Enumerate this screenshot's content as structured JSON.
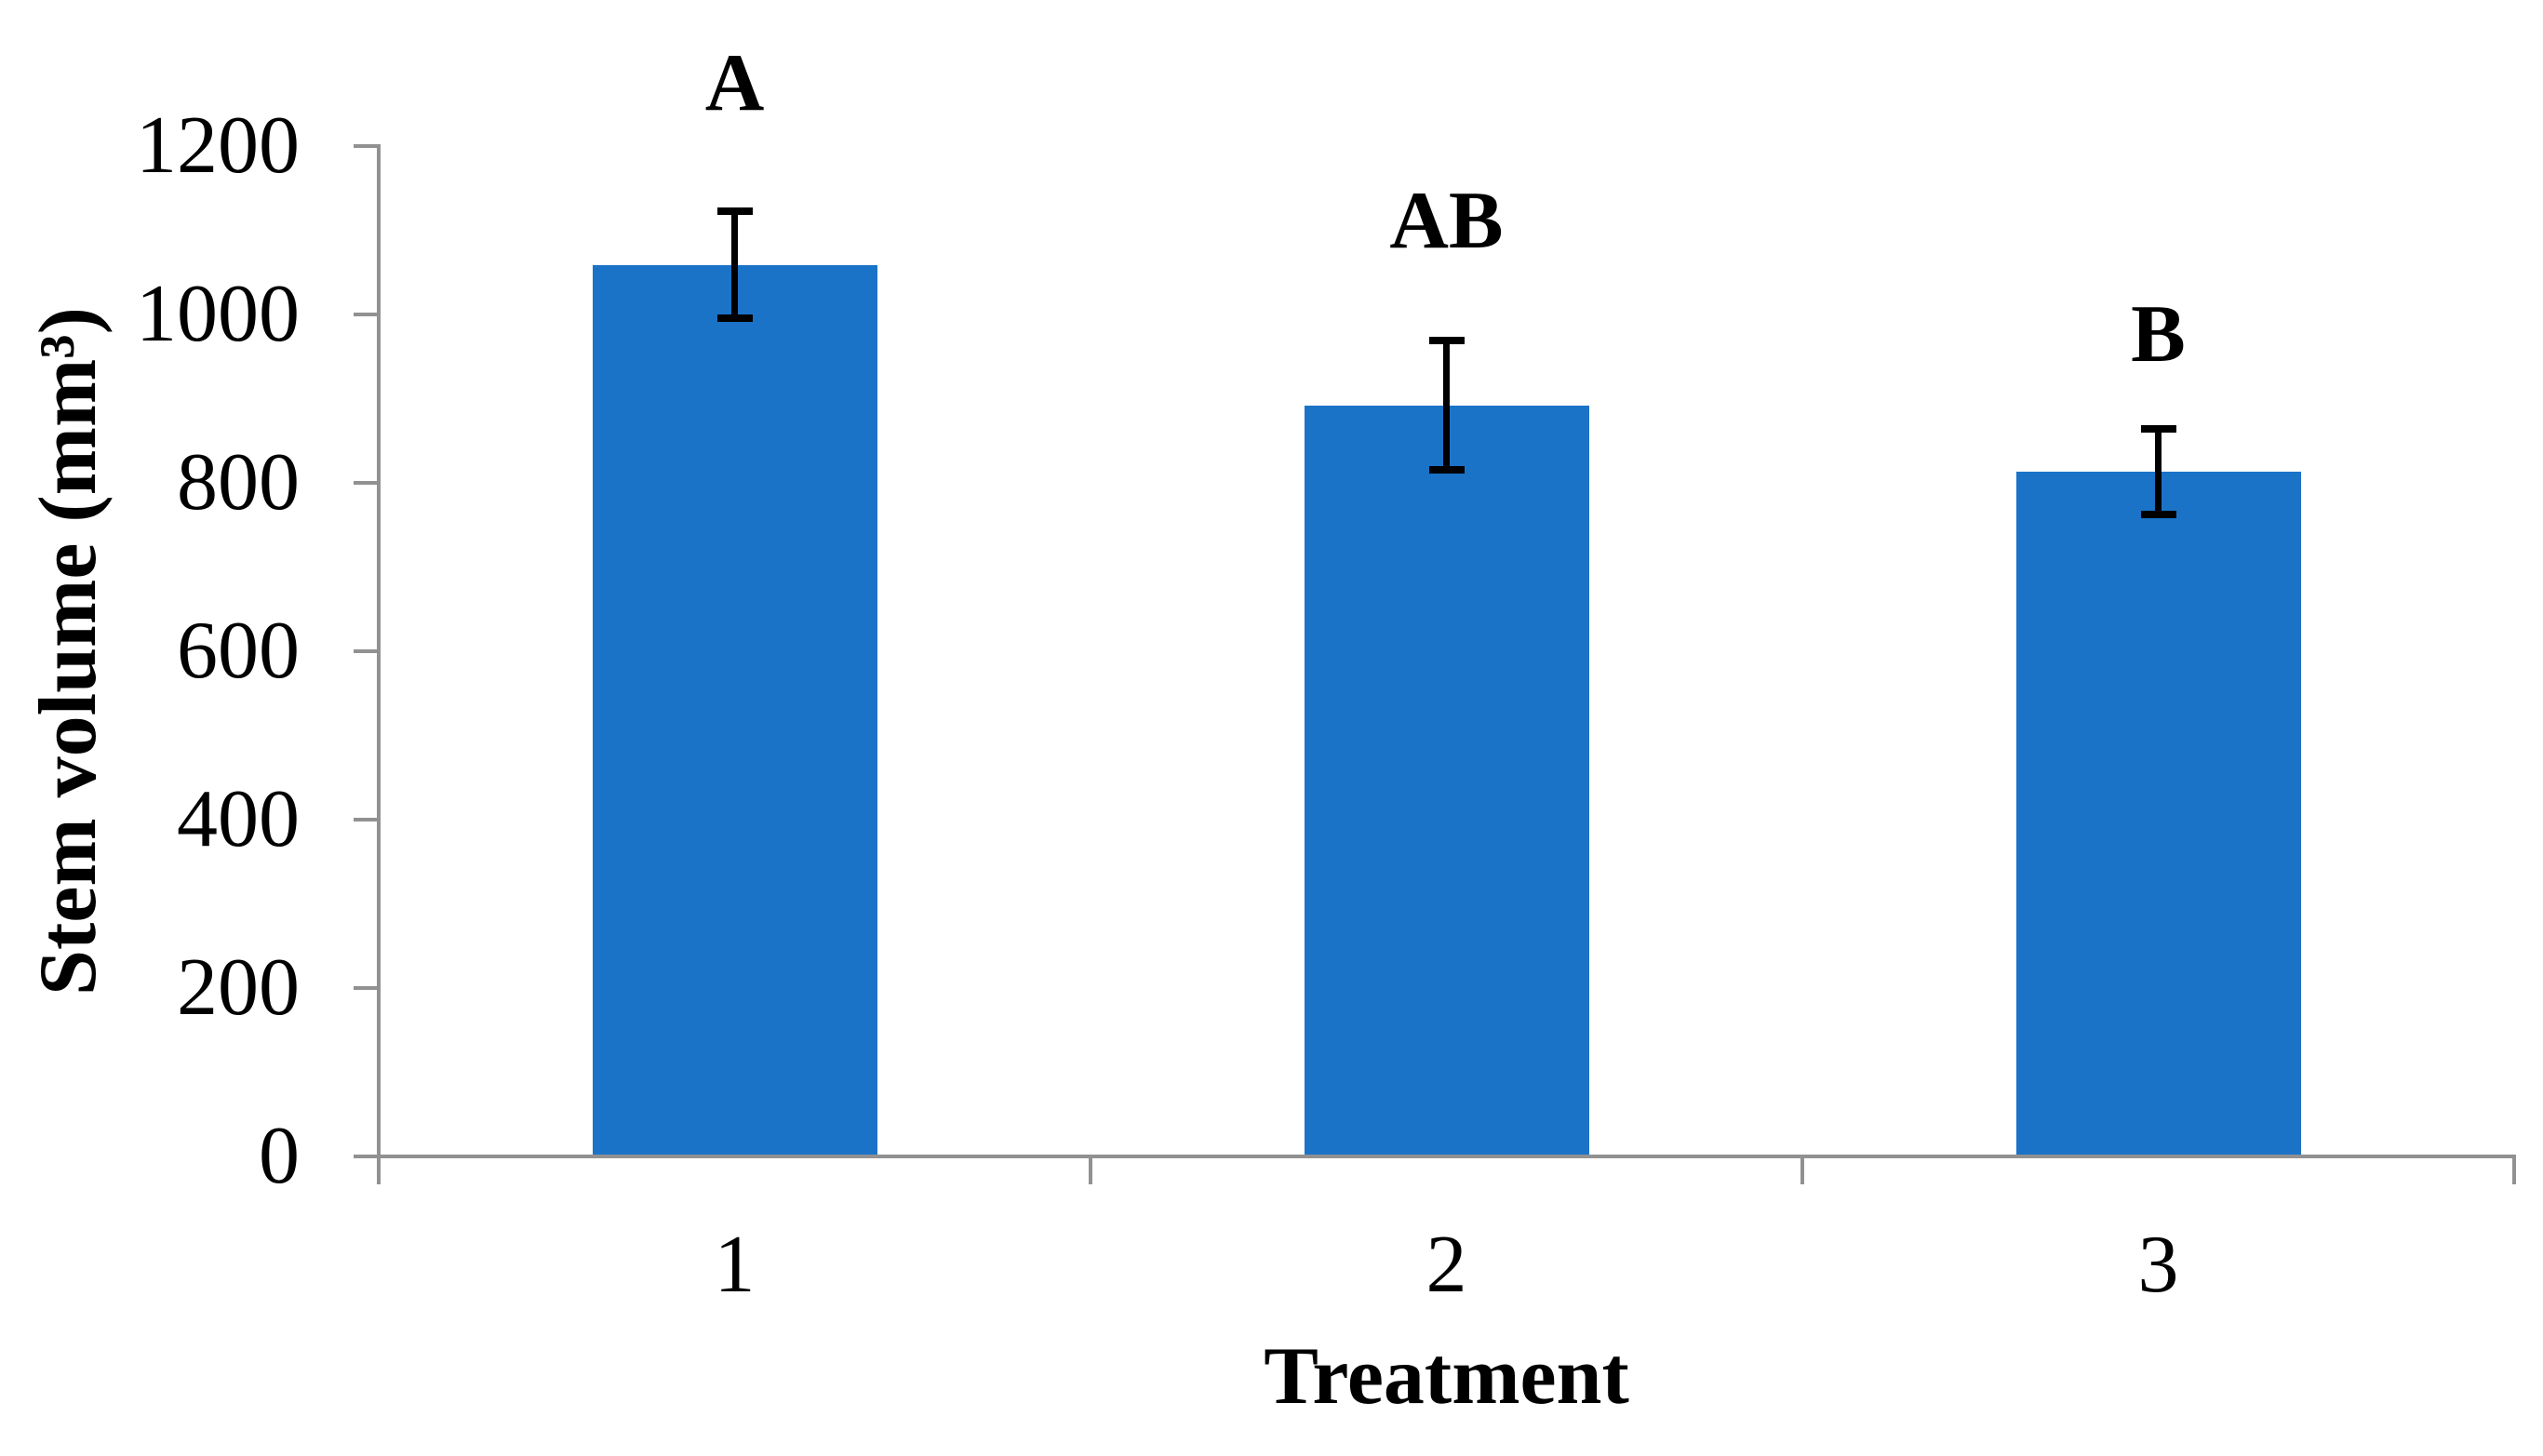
{
  "chart_data": {
    "type": "bar",
    "title": "",
    "xlabel": "Treatment",
    "ylabel": "Stem volume (mm³)",
    "categories": [
      "1",
      "2",
      "3"
    ],
    "values": [
      1059,
      892,
      813
    ],
    "error_bars": [
      68,
      81,
      55
    ],
    "sig_letters": [
      "A",
      "AB",
      "B"
    ],
    "ylim": [
      0,
      1200
    ],
    "ytick_step": 200,
    "ytick_labels": [
      "1200",
      "1000",
      "800",
      "600",
      "400",
      "200",
      "0"
    ],
    "grid": false,
    "legend": "none",
    "bar_color": "#1b73c8",
    "axis_color": "#919191",
    "error_bar_color": "#000000",
    "text_color": "#000000"
  }
}
